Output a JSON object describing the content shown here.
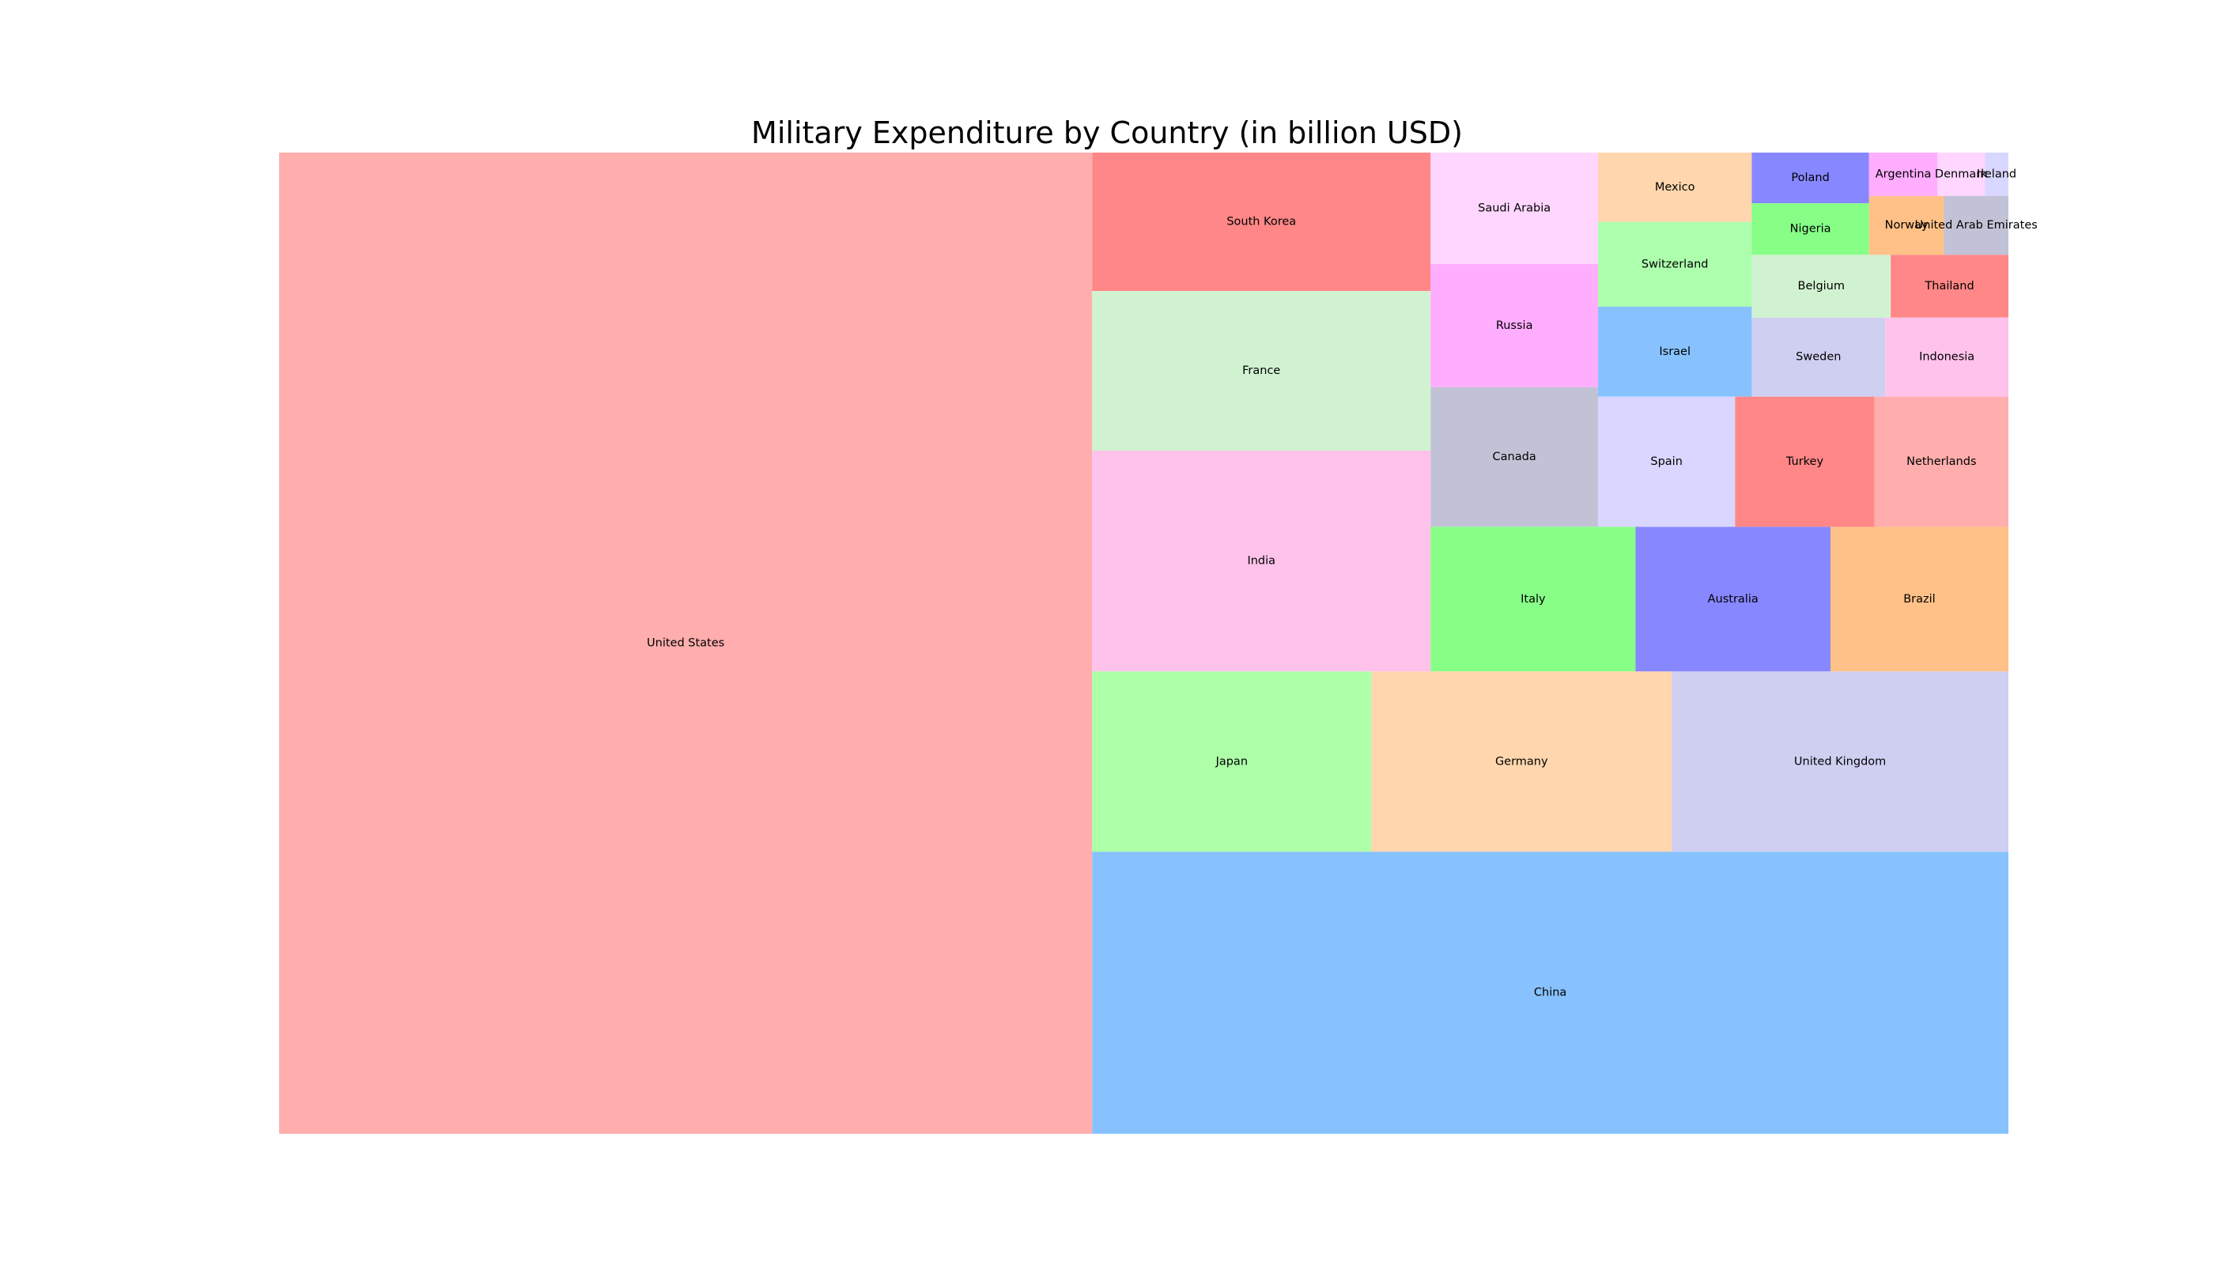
{
  "chart_data": {
    "type": "treemap",
    "title": "Military Expenditure by Country (in billion USD)",
    "unit": "billion USD",
    "items": [
      {
        "label": "United States",
        "value": 778,
        "color": "#ffadad"
      },
      {
        "label": "China",
        "value": 252,
        "color": "#87c2ff"
      },
      {
        "label": "Japan",
        "value": 49.1,
        "color": "#adffa8"
      },
      {
        "label": "Germany",
        "value": 52.8,
        "color": "#ffd6ad"
      },
      {
        "label": "United Kingdom",
        "value": 59.2,
        "color": "#cfcff2"
      },
      {
        "label": "India",
        "value": 72.9,
        "color": "#ffc2ea"
      },
      {
        "label": "France",
        "value": 52.7,
        "color": "#d1f2d1"
      },
      {
        "label": "South Korea",
        "value": 45.7,
        "color": "#ff8787"
      },
      {
        "label": "Italy",
        "value": 28.9,
        "color": "#87ff87"
      },
      {
        "label": "Australia",
        "value": 27.5,
        "color": "#8787ff"
      },
      {
        "label": "Brazil",
        "value": 25.1,
        "color": "#ffc187"
      },
      {
        "label": "Canada",
        "value": 22.8,
        "color": "#c2c2d6"
      },
      {
        "label": "Russia",
        "value": 20.1,
        "color": "#ffadff"
      },
      {
        "label": "Saudi Arabia",
        "value": 18.2,
        "color": "#ffd6ff"
      },
      {
        "label": "Spain",
        "value": 17.4,
        "color": "#d9d6ff"
      },
      {
        "label": "Israel",
        "value": 13.5,
        "color": "#87c2ff"
      },
      {
        "label": "Switzerland",
        "value": 12.7,
        "color": "#adffad"
      },
      {
        "label": "Mexico",
        "value": 10.4,
        "color": "#ffd6ad"
      },
      {
        "label": "Turkey",
        "value": 17.7,
        "color": "#ff8787"
      },
      {
        "label": "Netherlands",
        "value": 17.0,
        "color": "#ffadad"
      },
      {
        "label": "Sweden",
        "value": 10.3,
        "color": "#cfcff2"
      },
      {
        "label": "Indonesia",
        "value": 9.5,
        "color": "#ffc2ea"
      },
      {
        "label": "Belgium",
        "value": 8.5,
        "color": "#d1f2d1"
      },
      {
        "label": "Thailand",
        "value": 7.2,
        "color": "#ff8787"
      },
      {
        "label": "Nigeria",
        "value": 5.9,
        "color": "#87ff87"
      },
      {
        "label": "Poland",
        "value": 5.8,
        "color": "#8787ff"
      },
      {
        "label": "Norway",
        "value": 4.3,
        "color": "#ffc187"
      },
      {
        "label": "United Arab Emirates",
        "value": 3.7,
        "color": "#c2c2d6"
      },
      {
        "label": "Argentina",
        "value": 2.9,
        "color": "#ffadff"
      },
      {
        "label": "Denmark",
        "value": 2.0,
        "color": "#ffd6ff"
      },
      {
        "label": "Ireland",
        "value": 1.0,
        "color": "#d9d6ff"
      }
    ]
  }
}
